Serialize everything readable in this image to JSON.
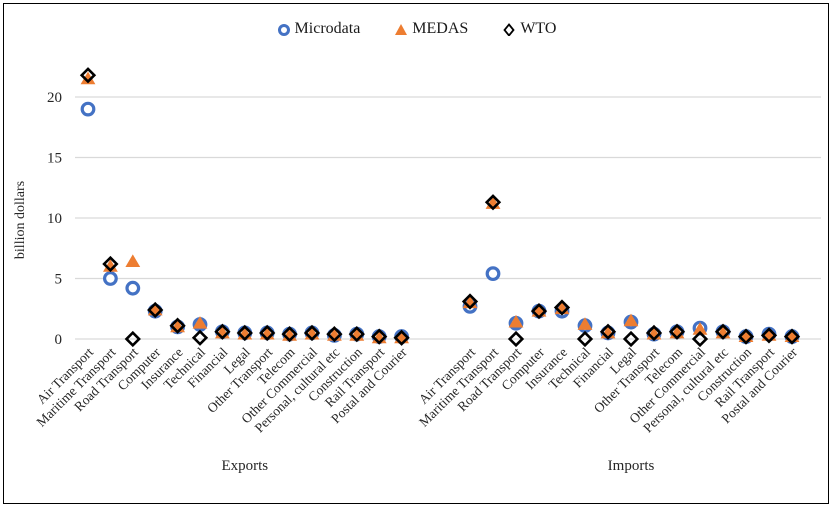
{
  "legend": {
    "items": [
      {
        "label": "Microdata",
        "marker": "circle",
        "color": "#4472C4"
      },
      {
        "label": "MEDAS",
        "marker": "triangle",
        "color": "#ED7D31"
      },
      {
        "label": "WTO",
        "marker": "diamond",
        "color": "#000000"
      }
    ]
  },
  "chart_data": {
    "type": "scatter",
    "title": "",
    "xlabel": "",
    "ylabel": "billion dollars",
    "yticks": [
      0,
      5,
      10,
      15,
      20
    ],
    "ylim": [
      0,
      22.5
    ],
    "grid": "horizontal-gridlines",
    "gridline_color": "#D9D9D9",
    "legend_position": "top-center",
    "categories": [
      "Air Transport",
      "Maritime Transport",
      "Road Transport",
      "Computer",
      "Insurance",
      "Technical",
      "Financial",
      "Legal",
      "Other Transport",
      "Telecom",
      "Other Commercial",
      "Personal, cultural etc",
      "Construction",
      "Rail Transport",
      "Postal and Courier"
    ],
    "groups": [
      {
        "label": "Exports",
        "series": [
          {
            "name": "Microdata",
            "marker": "circle",
            "color": "#4472C4",
            "values": [
              19.0,
              5.0,
              4.2,
              2.3,
              1.0,
              1.2,
              0.6,
              0.5,
              0.5,
              0.4,
              0.5,
              0.3,
              0.4,
              0.2,
              0.2
            ]
          },
          {
            "name": "MEDAS",
            "marker": "triangle",
            "color": "#ED7D31",
            "values": [
              21.5,
              6.0,
              6.4,
              2.4,
              1.0,
              1.3,
              0.5,
              0.4,
              0.4,
              0.3,
              0.4,
              0.3,
              0.3,
              0.1,
              0.1
            ]
          },
          {
            "name": "WTO",
            "marker": "diamond",
            "color": "#000000",
            "values": [
              21.8,
              6.2,
              0.0,
              2.4,
              1.1,
              0.1,
              0.6,
              0.5,
              0.5,
              0.4,
              0.5,
              0.4,
              0.4,
              0.2,
              0.1
            ]
          }
        ]
      },
      {
        "label": "Imports",
        "series": [
          {
            "name": "Microdata",
            "marker": "circle",
            "color": "#4472C4",
            "values": [
              2.7,
              5.4,
              1.3,
              2.3,
              2.3,
              1.1,
              0.5,
              1.4,
              0.4,
              0.6,
              0.9,
              0.6,
              0.2,
              0.4,
              0.2
            ]
          },
          {
            "name": "MEDAS",
            "marker": "triangle",
            "color": "#ED7D31",
            "values": [
              3.0,
              11.2,
              1.4,
              2.3,
              2.5,
              1.2,
              0.5,
              1.5,
              0.4,
              0.5,
              0.8,
              0.5,
              0.2,
              0.3,
              0.2
            ]
          },
          {
            "name": "WTO",
            "marker": "diamond",
            "color": "#000000",
            "values": [
              3.1,
              11.3,
              0.0,
              2.3,
              2.6,
              0.0,
              0.6,
              0.0,
              0.5,
              0.6,
              0.0,
              0.6,
              0.2,
              0.3,
              0.2
            ]
          }
        ]
      }
    ]
  }
}
